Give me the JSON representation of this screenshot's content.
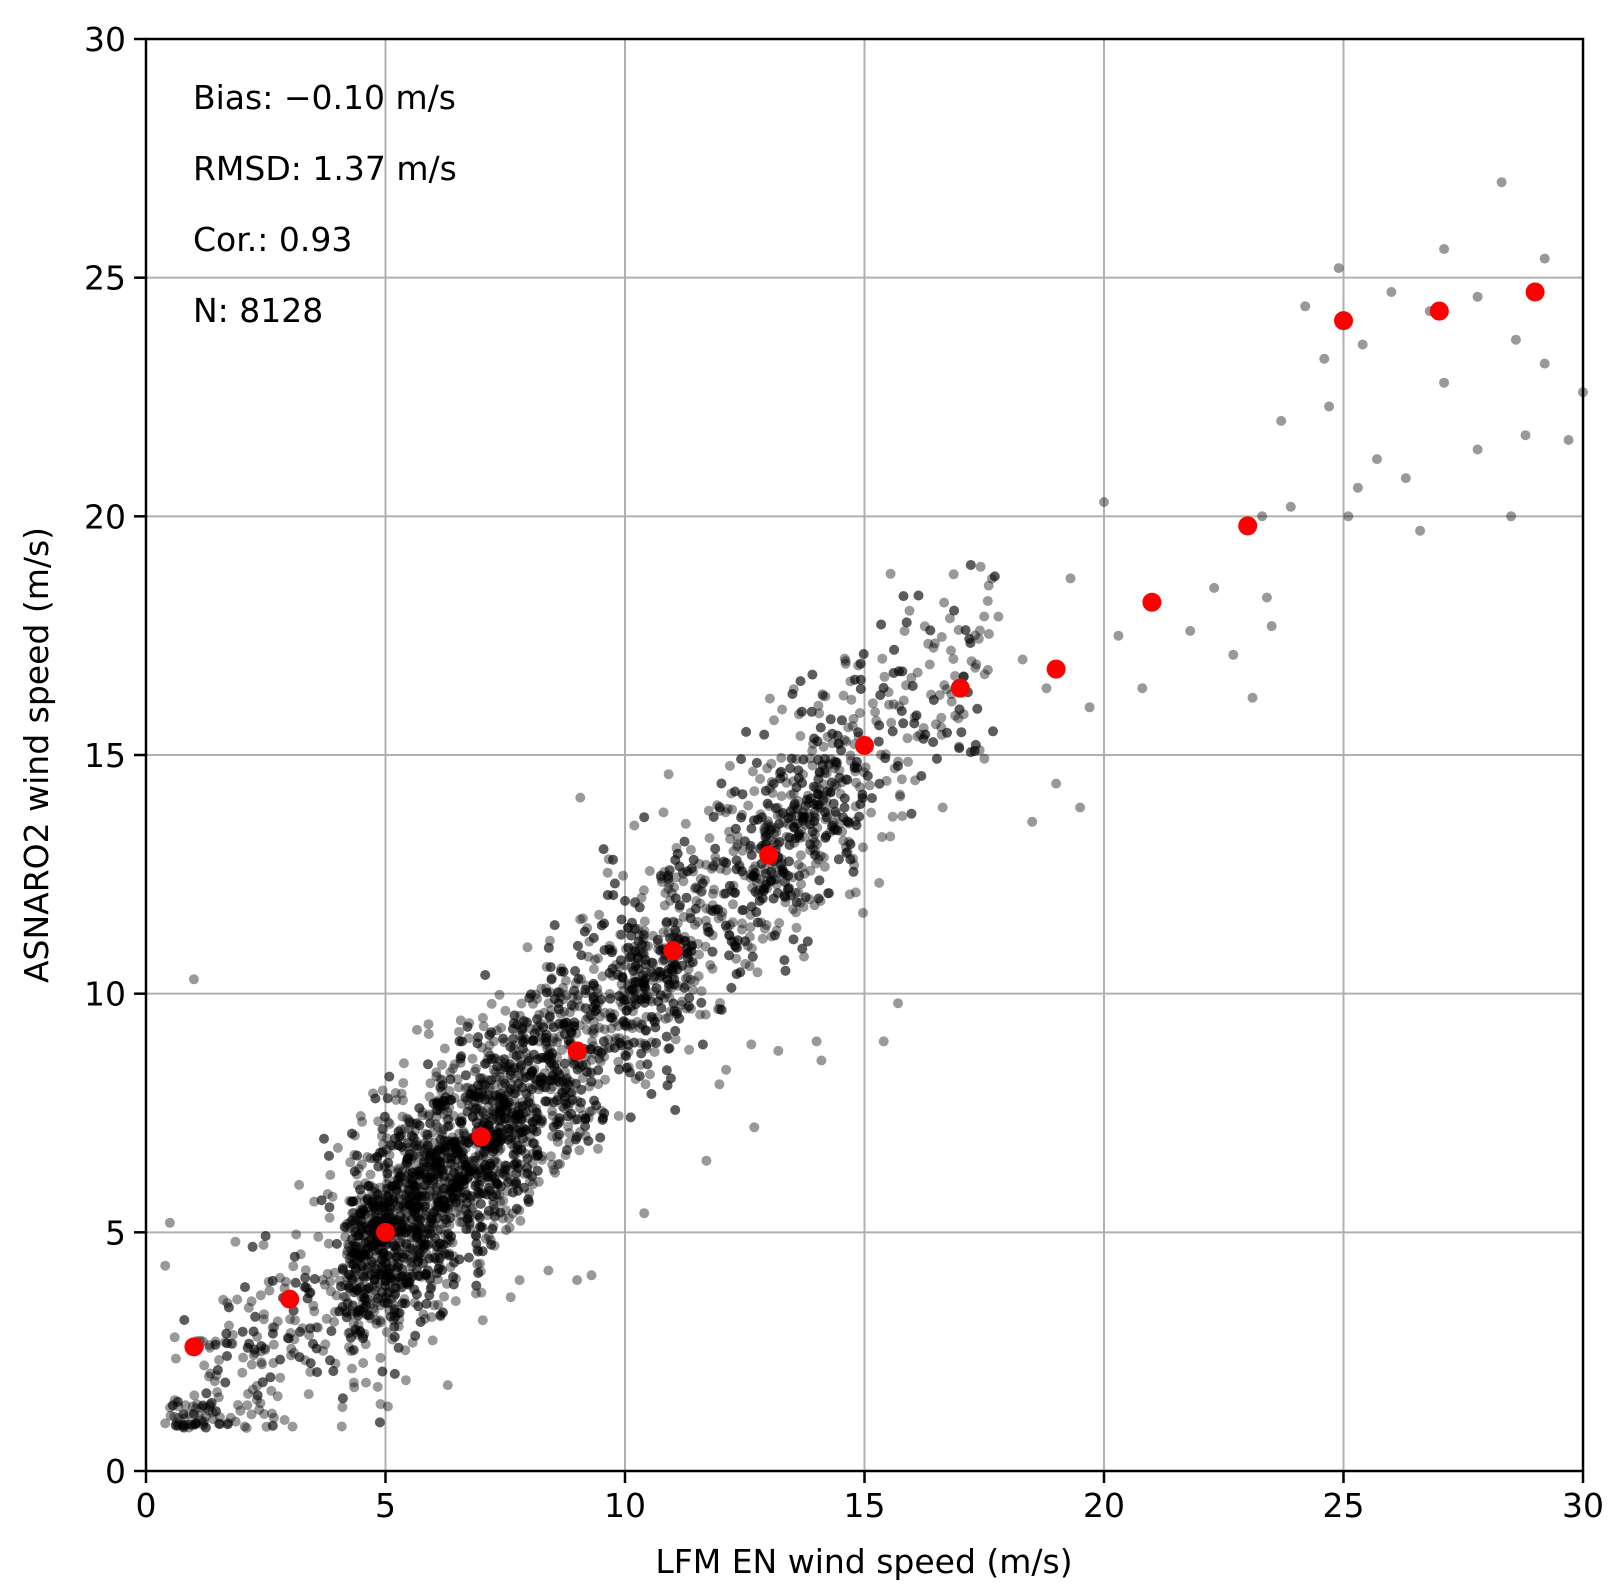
{
  "chart_data": {
    "type": "scatter",
    "title": "",
    "xlabel": "LFM EN wind speed (m/s)",
    "ylabel": "ASNARO2 wind speed (m/s)",
    "xlim": [
      0,
      30
    ],
    "ylim": [
      0,
      30
    ],
    "xticks": [
      "0",
      "5",
      "10",
      "15",
      "20",
      "25",
      "30"
    ],
    "yticks": [
      "0",
      "5",
      "10",
      "15",
      "20",
      "25",
      "30"
    ],
    "grid": true,
    "annotations": [
      "Bias: −0.10 m/s",
      "RMSD: 1.37 m/s",
      "Cor.: 0.93",
      "N: 8128"
    ],
    "series": [
      {
        "color": "#000000",
        "opacity": 0.4,
        "marker": "small-circle",
        "count": 8128,
        "trend": {
          "slope": 1.0,
          "intercept": -0.1,
          "spread_sd": 1.2
        },
        "points": [
          [
            1.0,
            10.3
          ],
          [
            0.4,
            4.3
          ],
          [
            0.5,
            5.2
          ],
          [
            0.6,
            2.8
          ],
          [
            0.4,
            1.0
          ],
          [
            0.8,
            1.1
          ],
          [
            1.2,
            1.0
          ],
          [
            2.1,
            0.9
          ],
          [
            12.7,
            7.2
          ],
          [
            10.4,
            5.4
          ],
          [
            6.3,
            1.8
          ],
          [
            20.0,
            20.3
          ],
          [
            19.3,
            18.7
          ],
          [
            19.7,
            16.0
          ],
          [
            20.3,
            17.5
          ],
          [
            20.8,
            16.4
          ],
          [
            21.8,
            17.6
          ],
          [
            22.3,
            18.5
          ],
          [
            22.7,
            17.1
          ],
          [
            23.1,
            16.2
          ],
          [
            23.4,
            18.3
          ],
          [
            23.7,
            22.0
          ],
          [
            23.9,
            20.2
          ],
          [
            24.2,
            24.4
          ],
          [
            24.6,
            23.3
          ],
          [
            24.7,
            22.3
          ],
          [
            24.9,
            25.2
          ],
          [
            25.1,
            20.0
          ],
          [
            25.3,
            20.6
          ],
          [
            25.7,
            21.2
          ],
          [
            26.0,
            24.7
          ],
          [
            26.3,
            20.8
          ],
          [
            26.6,
            19.7
          ],
          [
            26.8,
            24.3
          ],
          [
            27.1,
            25.6
          ],
          [
            27.1,
            22.8
          ],
          [
            27.8,
            21.4
          ],
          [
            27.8,
            24.6
          ],
          [
            28.3,
            27.0
          ],
          [
            28.5,
            20.0
          ],
          [
            28.6,
            23.7
          ],
          [
            28.8,
            21.7
          ],
          [
            29.2,
            23.2
          ],
          [
            29.2,
            25.4
          ],
          [
            29.7,
            21.6
          ],
          [
            30.0,
            22.6
          ],
          [
            25.4,
            23.6
          ],
          [
            23.3,
            20.0
          ],
          [
            23.5,
            17.7
          ],
          [
            18.3,
            17.0
          ],
          [
            18.8,
            16.4
          ],
          [
            18.5,
            13.6
          ],
          [
            19.5,
            13.9
          ],
          [
            19.0,
            14.4
          ],
          [
            14.0,
            9.0
          ],
          [
            15.4,
            9.0
          ],
          [
            15.7,
            9.8
          ],
          [
            13.2,
            8.8
          ],
          [
            14.1,
            8.6
          ],
          [
            11.7,
            6.5
          ],
          [
            9.0,
            4.0
          ],
          [
            9.3,
            4.1
          ],
          [
            8.4,
            4.2
          ],
          [
            7.8,
            4.0
          ]
        ]
      },
      {
        "color": "#ff0000",
        "marker": "large-circle",
        "points": [
          [
            1,
            2.6
          ],
          [
            3,
            3.6
          ],
          [
            5,
            5.0
          ],
          [
            7,
            7.0
          ],
          [
            9,
            8.8
          ],
          [
            11,
            10.9
          ],
          [
            13,
            12.9
          ],
          [
            15,
            15.2
          ],
          [
            17,
            16.4
          ],
          [
            19,
            16.8
          ],
          [
            21,
            18.2
          ],
          [
            23,
            19.8
          ],
          [
            25,
            24.1
          ],
          [
            27,
            24.3
          ],
          [
            29,
            24.7
          ]
        ]
      }
    ]
  }
}
